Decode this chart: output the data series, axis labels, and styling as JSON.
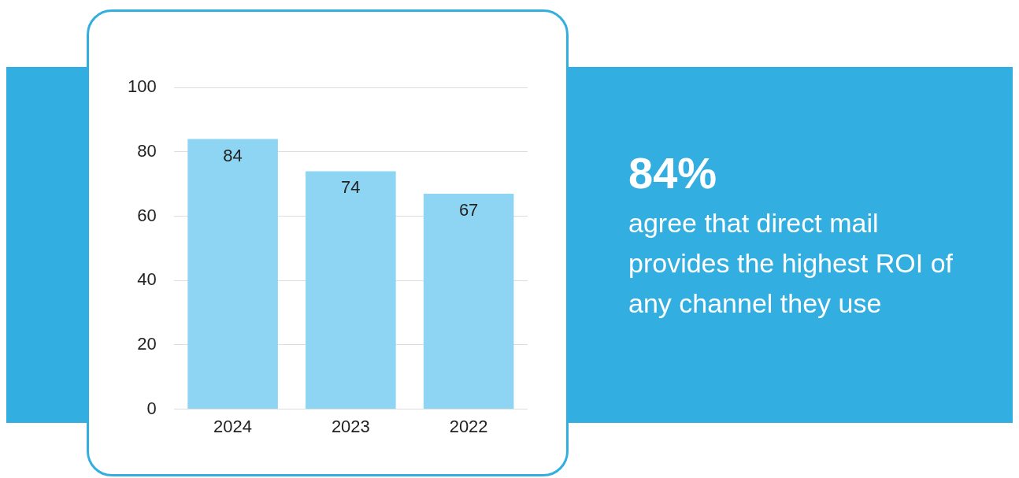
{
  "chart_data": {
    "type": "bar",
    "categories": [
      "2024",
      "2023",
      "2022"
    ],
    "values": [
      84,
      74,
      67
    ],
    "color": "#8dd5f2",
    "ylim": [
      0,
      100
    ],
    "yticks": [
      0,
      20,
      40,
      60,
      80,
      100
    ],
    "grid": "y",
    "data_labels": true,
    "annotations": [
      "84%",
      "agree that direct mail provides the highest ROI of any channel they use"
    ]
  }
}
